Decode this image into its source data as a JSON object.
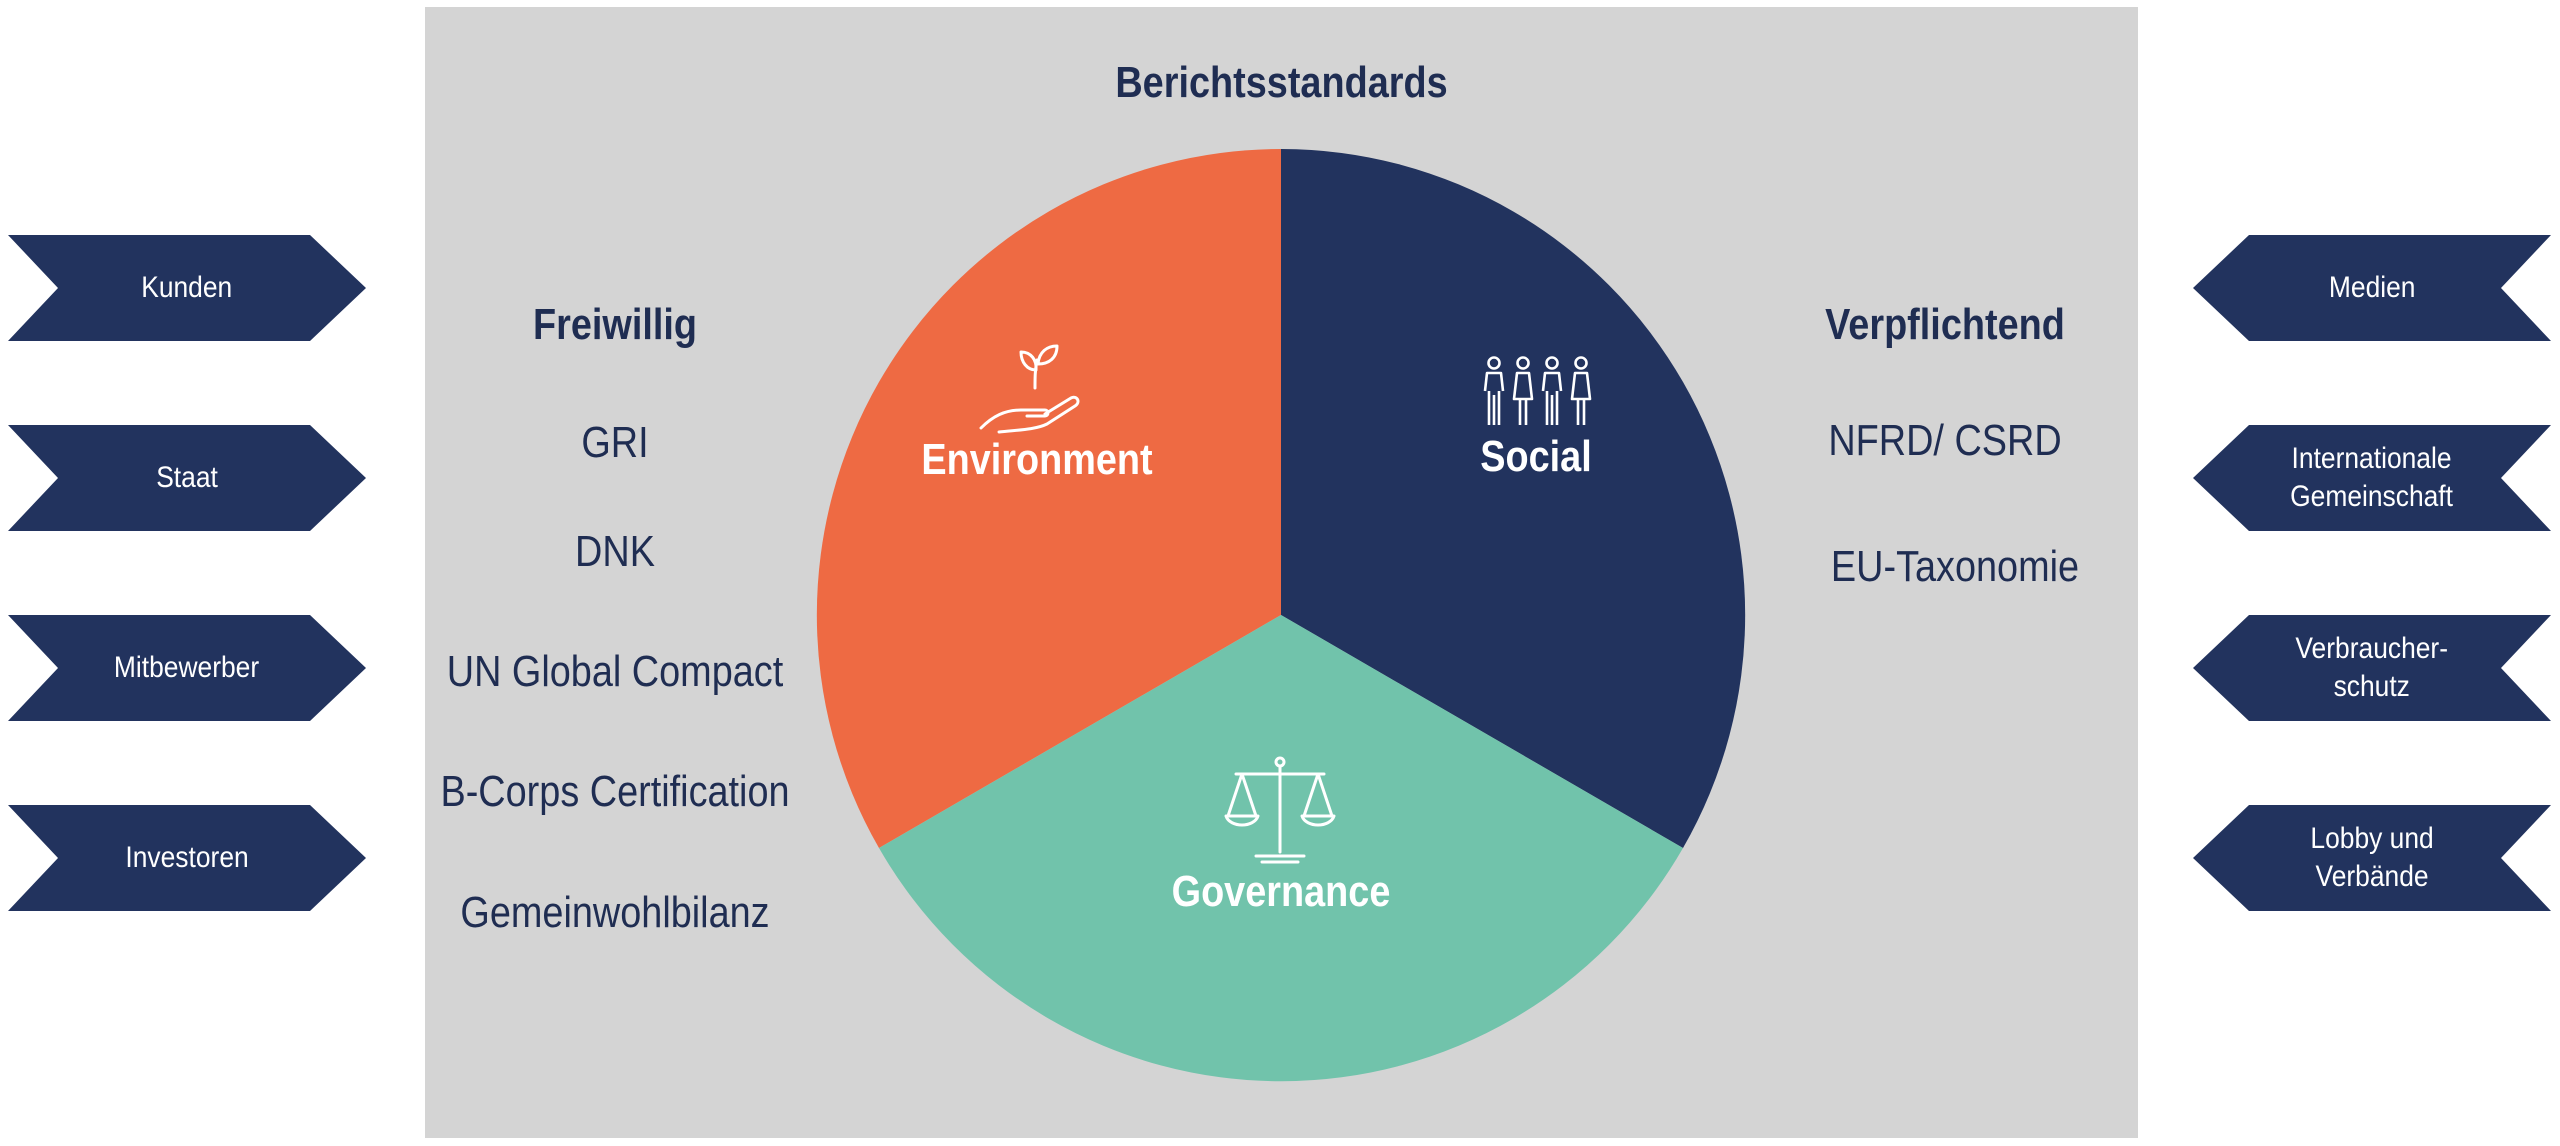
{
  "title": "Berichtsstandards",
  "voluntary": {
    "heading": "Freiwillig",
    "items": [
      "GRI",
      "DNK",
      "UN Global Compact",
      "B-Corps Certification",
      "Gemeinwohlbilanz"
    ]
  },
  "mandatory": {
    "heading": "Verpflichtend",
    "items": [
      "NFRD/ CSRD",
      "EU-Taxonomie"
    ]
  },
  "segments": [
    {
      "label": "Environment",
      "icon": "plant-in-hand-icon",
      "color": "#ee6a43"
    },
    {
      "label": "Social",
      "icon": "people-group-icon",
      "color": "#22335e"
    },
    {
      "label": "Governance",
      "icon": "scales-icon",
      "color": "#71c3ab"
    }
  ],
  "left_stakeholders": [
    "Kunden",
    "Staat",
    "Mitbewerber",
    "Investoren"
  ],
  "right_stakeholders": [
    "Medien",
    "Internationale\nGemeinschaft",
    "Verbraucher-\nschutz",
    "Lobby und\nVerbände"
  ],
  "colors": {
    "panel": "#d4d4d4",
    "arrow": "#22335e",
    "text_dark": "#1f2d52"
  }
}
